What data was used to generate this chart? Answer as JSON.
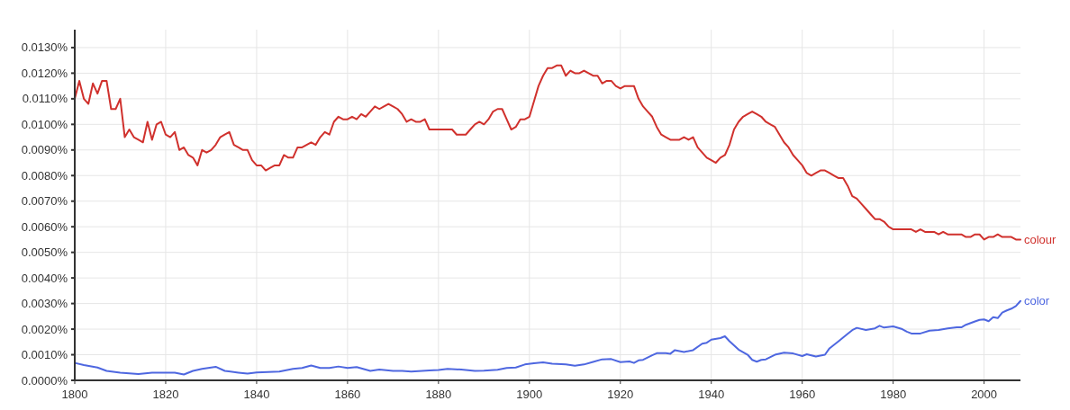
{
  "chart_data": {
    "type": "line",
    "xlim": [
      1800,
      2008
    ],
    "xticks": [
      1800,
      1820,
      1840,
      1860,
      1880,
      1900,
      1920,
      1940,
      1960,
      1980,
      2000
    ],
    "ylim": [
      0,
      0.0137
    ],
    "yticks": [
      {
        "value": 0,
        "label": "0.0000%"
      },
      {
        "value": 0.001,
        "label": "0.0010%"
      },
      {
        "value": 0.002,
        "label": "0.0020%"
      },
      {
        "value": 0.003,
        "label": "0.0030%"
      },
      {
        "value": 0.004,
        "label": "0.0040%"
      },
      {
        "value": 0.005,
        "label": "0.0050%"
      },
      {
        "value": 0.006,
        "label": "0.0060%"
      },
      {
        "value": 0.007,
        "label": "0.0070%"
      },
      {
        "value": 0.008,
        "label": "0.0080%"
      },
      {
        "value": 0.009,
        "label": "0.0090%"
      },
      {
        "value": 0.01,
        "label": "0.0100%"
      },
      {
        "value": 0.011,
        "label": "0.0110%"
      },
      {
        "value": 0.012,
        "label": "0.0120%"
      },
      {
        "value": 0.013,
        "label": "0.0130%"
      }
    ],
    "grid": true,
    "legend": false,
    "marker": "none",
    "line_style": "solid",
    "series": [
      {
        "name": "colour",
        "color": "#d0312d",
        "x": [
          1800,
          1801,
          1802,
          1803,
          1804,
          1805,
          1806,
          1807,
          1808,
          1809,
          1810,
          1811,
          1812,
          1813,
          1814,
          1815,
          1816,
          1817,
          1818,
          1819,
          1820,
          1821,
          1822,
          1823,
          1824,
          1825,
          1826,
          1827,
          1828,
          1829,
          1830,
          1831,
          1832,
          1833,
          1834,
          1835,
          1836,
          1837,
          1838,
          1839,
          1840,
          1841,
          1842,
          1843,
          1844,
          1845,
          1846,
          1847,
          1848,
          1849,
          1850,
          1851,
          1852,
          1853,
          1854,
          1855,
          1856,
          1857,
          1858,
          1859,
          1860,
          1861,
          1862,
          1863,
          1864,
          1865,
          1866,
          1867,
          1868,
          1869,
          1870,
          1871,
          1872,
          1873,
          1874,
          1875,
          1876,
          1877,
          1878,
          1879,
          1880,
          1881,
          1882,
          1883,
          1884,
          1885,
          1886,
          1887,
          1888,
          1889,
          1890,
          1891,
          1892,
          1893,
          1894,
          1895,
          1896,
          1897,
          1898,
          1899,
          1900,
          1901,
          1902,
          1903,
          1904,
          1905,
          1906,
          1907,
          1908,
          1909,
          1910,
          1911,
          1912,
          1913,
          1914,
          1915,
          1916,
          1917,
          1918,
          1919,
          1920,
          1921,
          1922,
          1923,
          1924,
          1925,
          1926,
          1927,
          1928,
          1929,
          1930,
          1931,
          1932,
          1933,
          1934,
          1935,
          1936,
          1937,
          1938,
          1939,
          1940,
          1941,
          1942,
          1943,
          1944,
          1945,
          1946,
          1947,
          1948,
          1949,
          1950,
          1951,
          1952,
          1953,
          1954,
          1955,
          1956,
          1957,
          1958,
          1959,
          1960,
          1961,
          1962,
          1963,
          1964,
          1965,
          1966,
          1967,
          1968,
          1969,
          1970,
          1971,
          1972,
          1973,
          1974,
          1975,
          1976,
          1977,
          1978,
          1979,
          1980,
          1981,
          1982,
          1983,
          1984,
          1985,
          1986,
          1987,
          1988,
          1989,
          1990,
          1991,
          1992,
          1993,
          1994,
          1995,
          1996,
          1997,
          1998,
          1999,
          2000,
          2001,
          2002,
          2003,
          2004,
          2005,
          2006,
          2007,
          2008
        ],
        "values": [
          0.011,
          0.0117,
          0.011,
          0.0108,
          0.0116,
          0.0112,
          0.0117,
          0.0117,
          0.0106,
          0.0106,
          0.011,
          0.0095,
          0.0098,
          0.0095,
          0.0094,
          0.0093,
          0.0101,
          0.0094,
          0.01,
          0.0101,
          0.0096,
          0.0095,
          0.0097,
          0.009,
          0.0091,
          0.0088,
          0.0087,
          0.0084,
          0.009,
          0.0089,
          0.009,
          0.0092,
          0.0095,
          0.0096,
          0.0097,
          0.0092,
          0.0091,
          0.009,
          0.009,
          0.0086,
          0.0084,
          0.0084,
          0.0082,
          0.0083,
          0.0084,
          0.0084,
          0.0088,
          0.0087,
          0.0087,
          0.0091,
          0.0091,
          0.0092,
          0.0093,
          0.0092,
          0.0095,
          0.0097,
          0.0096,
          0.0101,
          0.0103,
          0.0102,
          0.0102,
          0.0103,
          0.0102,
          0.0104,
          0.0103,
          0.0105,
          0.0107,
          0.0106,
          0.0107,
          0.0108,
          0.0107,
          0.0106,
          0.0104,
          0.0101,
          0.0102,
          0.0101,
          0.0101,
          0.0102,
          0.0098,
          0.0098,
          0.0098,
          0.0098,
          0.0098,
          0.0098,
          0.0096,
          0.0096,
          0.0096,
          0.0098,
          0.01,
          0.0101,
          0.01,
          0.0102,
          0.0105,
          0.0106,
          0.0106,
          0.0102,
          0.0098,
          0.0099,
          0.0102,
          0.0102,
          0.0103,
          0.0109,
          0.0115,
          0.0119,
          0.0122,
          0.0122,
          0.0123,
          0.0123,
          0.0119,
          0.0121,
          0.012,
          0.012,
          0.0121,
          0.012,
          0.0119,
          0.0119,
          0.0116,
          0.0117,
          0.0117,
          0.0115,
          0.0114,
          0.0115,
          0.0115,
          0.0115,
          0.011,
          0.0107,
          0.0105,
          0.0103,
          0.0099,
          0.0096,
          0.0095,
          0.0094,
          0.0094,
          0.0094,
          0.0095,
          0.0094,
          0.0095,
          0.0091,
          0.0089,
          0.0087,
          0.0086,
          0.0085,
          0.0087,
          0.0088,
          0.0092,
          0.0098,
          0.0101,
          0.0103,
          0.0104,
          0.0105,
          0.0104,
          0.0103,
          0.0101,
          0.01,
          0.0099,
          0.0096,
          0.0093,
          0.0091,
          0.0088,
          0.0086,
          0.0084,
          0.0081,
          0.008,
          0.0081,
          0.0082,
          0.0082,
          0.0081,
          0.008,
          0.0079,
          0.0079,
          0.0076,
          0.0072,
          0.0071,
          0.0069,
          0.0067,
          0.0065,
          0.0063,
          0.0063,
          0.0062,
          0.006,
          0.0059,
          0.0059,
          0.0059,
          0.0059,
          0.0059,
          0.0058,
          0.0059,
          0.0058,
          0.0058,
          0.0058,
          0.0057,
          0.0058,
          0.0057,
          0.0057,
          0.0057,
          0.0057,
          0.0056,
          0.0056,
          0.0057,
          0.0057,
          0.0055,
          0.0056,
          0.0056,
          0.0057,
          0.0056,
          0.0056,
          0.0056,
          0.0055,
          0.0055
        ]
      },
      {
        "name": "color",
        "color": "#4e67e0",
        "x": [
          1800,
          1802,
          1805,
          1807,
          1810,
          1814,
          1817,
          1820,
          1822,
          1824,
          1826,
          1828,
          1831,
          1833,
          1836,
          1838,
          1840,
          1845,
          1848,
          1850,
          1852,
          1854,
          1856,
          1858,
          1860,
          1862,
          1865,
          1867,
          1870,
          1872,
          1874,
          1878,
          1880,
          1882,
          1885,
          1888,
          1890,
          1893,
          1895,
          1897,
          1899,
          1901,
          1903,
          1905,
          1908,
          1910,
          1912,
          1914,
          1916,
          1918,
          1920,
          1922,
          1923,
          1924,
          1925,
          1927,
          1928,
          1930,
          1931,
          1932,
          1934,
          1936,
          1938,
          1939,
          1940,
          1942,
          1943,
          1944,
          1946,
          1948,
          1949,
          1950,
          1951,
          1952,
          1954,
          1956,
          1958,
          1960,
          1961,
          1963,
          1965,
          1966,
          1968,
          1970,
          1971,
          1972,
          1974,
          1976,
          1977,
          1978,
          1980,
          1982,
          1983,
          1984,
          1986,
          1988,
          1990,
          1992,
          1994,
          1995,
          1996,
          1998,
          1999,
          2000,
          2001,
          2002,
          2003,
          2004,
          2005,
          2006,
          2007,
          2008
        ],
        "values": [
          0.00068,
          0.0006,
          0.0005,
          0.00037,
          0.0003,
          0.00025,
          0.0003,
          0.0003,
          0.0003,
          0.00023,
          0.00037,
          0.00045,
          0.00053,
          0.00037,
          0.0003,
          0.00026,
          0.00031,
          0.00034,
          0.00045,
          0.00048,
          0.00058,
          0.00048,
          0.00048,
          0.00054,
          0.00048,
          0.00052,
          0.00037,
          0.00042,
          0.00037,
          0.00037,
          0.00034,
          0.00039,
          0.0004,
          0.00045,
          0.00042,
          0.00037,
          0.00038,
          0.00041,
          0.00048,
          0.0005,
          0.00062,
          0.00067,
          0.0007,
          0.00065,
          0.00062,
          0.00057,
          0.00062,
          0.00072,
          0.00082,
          0.00083,
          0.00071,
          0.00074,
          0.00068,
          0.00078,
          0.0008,
          0.00098,
          0.00106,
          0.00106,
          0.00104,
          0.00118,
          0.00111,
          0.00118,
          0.00143,
          0.00147,
          0.00159,
          0.00165,
          0.00172,
          0.00153,
          0.0012,
          0.001,
          0.0008,
          0.00073,
          0.0008,
          0.00082,
          0.001,
          0.00108,
          0.00105,
          0.00095,
          0.00102,
          0.00093,
          0.001,
          0.00125,
          0.00153,
          0.00182,
          0.00196,
          0.00205,
          0.00197,
          0.00203,
          0.00213,
          0.00206,
          0.00211,
          0.002,
          0.0019,
          0.00183,
          0.00183,
          0.00194,
          0.00197,
          0.00203,
          0.00207,
          0.00207,
          0.00217,
          0.0023,
          0.00236,
          0.00238,
          0.00231,
          0.00247,
          0.00243,
          0.00265,
          0.00273,
          0.0028,
          0.0029,
          0.0031
        ]
      }
    ]
  }
}
